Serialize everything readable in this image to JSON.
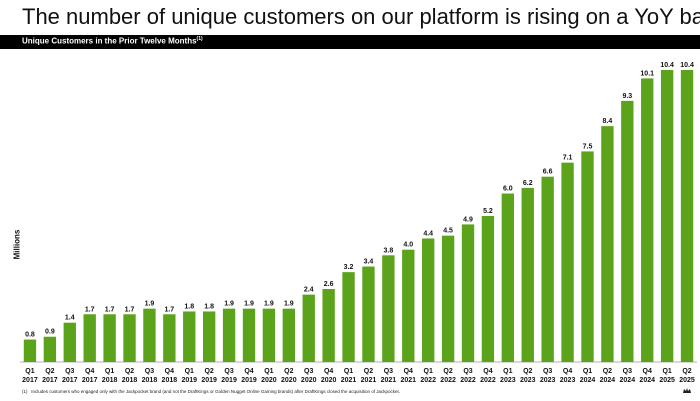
{
  "header": {
    "title": "The number of unique customers on our platform is rising on a YoY basis",
    "band_title": "Unique Customers in the Prior Twelve Months",
    "band_superscript": "(1)"
  },
  "footnote": {
    "marker": "(1)",
    "text": "Includes customers who engaged only with the Jackpocket brand (and not the DraftKings or Golden Nugget Online Gaming brands) after DraftKings closed the acquisition of Jackpocket."
  },
  "colors": {
    "bar": "#5BA31B",
    "band": "#000000"
  },
  "chart_data": {
    "type": "bar",
    "title": "Unique Customers in the Prior Twelve Months",
    "ylabel": "Millions",
    "xlabel": "",
    "ylim": [
      0,
      10.4
    ],
    "grid": false,
    "categories": [
      [
        "Q1",
        "2017"
      ],
      [
        "Q2",
        "2017"
      ],
      [
        "Q3",
        "2017"
      ],
      [
        "Q4",
        "2017"
      ],
      [
        "Q1",
        "2018"
      ],
      [
        "Q2",
        "2018"
      ],
      [
        "Q3",
        "2018"
      ],
      [
        "Q4",
        "2018"
      ],
      [
        "Q1",
        "2019"
      ],
      [
        "Q2",
        "2019"
      ],
      [
        "Q3",
        "2019"
      ],
      [
        "Q4",
        "2019"
      ],
      [
        "Q1",
        "2020"
      ],
      [
        "Q2",
        "2020"
      ],
      [
        "Q3",
        "2020"
      ],
      [
        "Q4",
        "2020"
      ],
      [
        "Q1",
        "2021"
      ],
      [
        "Q2",
        "2021"
      ],
      [
        "Q3",
        "2021"
      ],
      [
        "Q4",
        "2021"
      ],
      [
        "Q1",
        "2022"
      ],
      [
        "Q2",
        "2022"
      ],
      [
        "Q3",
        "2022"
      ],
      [
        "Q4",
        "2022"
      ],
      [
        "Q1",
        "2023"
      ],
      [
        "Q2",
        "2023"
      ],
      [
        "Q3",
        "2023"
      ],
      [
        "Q4",
        "2023"
      ],
      [
        "Q1",
        "2024"
      ],
      [
        "Q2",
        "2024"
      ],
      [
        "Q3",
        "2024"
      ],
      [
        "Q4",
        "2024"
      ],
      [
        "Q1",
        "2025"
      ],
      [
        "Q2",
        "2025"
      ]
    ],
    "values": [
      0.8,
      0.9,
      1.4,
      1.7,
      1.7,
      1.7,
      1.9,
      1.7,
      1.8,
      1.8,
      1.9,
      1.9,
      1.9,
      1.9,
      2.4,
      2.6,
      3.2,
      3.4,
      3.8,
      4.0,
      4.4,
      4.5,
      4.9,
      5.2,
      6.0,
      6.2,
      6.6,
      7.1,
      7.5,
      8.4,
      9.3,
      10.1,
      10.4,
      10.4
    ],
    "labels": [
      "0.8",
      "0.9",
      "1.4",
      "1.7",
      "1.7",
      "1.7",
      "1.9",
      "1.7",
      "1.8",
      "1.8",
      "1.9",
      "1.9",
      "1.9",
      "1.9",
      "2.4",
      "2.6",
      "3.2",
      "3.4",
      "3.8",
      "4.0",
      "4.4",
      "4.5",
      "4.9",
      "5.2",
      "6.0",
      "6.2",
      "6.6",
      "7.1",
      "7.5",
      "8.4",
      "9.3",
      "10.1",
      "10.4",
      "10.4"
    ]
  }
}
